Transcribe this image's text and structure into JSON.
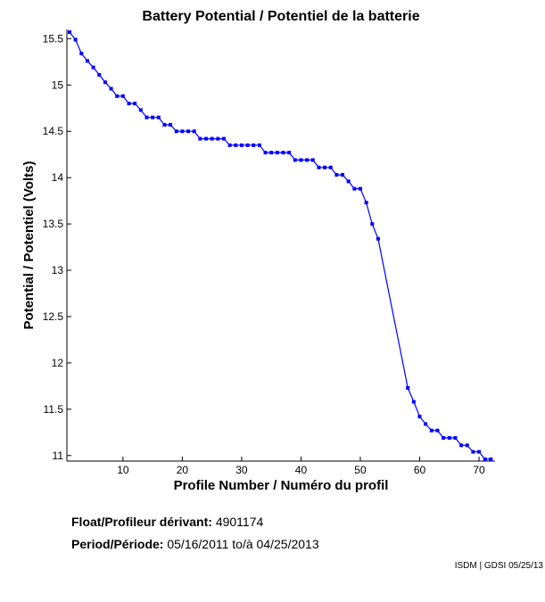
{
  "chart_data": {
    "type": "line",
    "title": "Battery Potential / Potentiel de la batterie",
    "xlabel": "Profile Number / Numéro du profil",
    "ylabel": "Potential / Potentiel (Volts)",
    "xlim": [
      0.55,
      72.7
    ],
    "ylim": [
      10.94,
      15.6
    ],
    "xticks": [
      10,
      20,
      30,
      40,
      50,
      60,
      70
    ],
    "xtick_labels": [
      "10",
      "20",
      "30",
      "40",
      "50",
      "60",
      "70"
    ],
    "yticks": [
      11,
      11.5,
      12,
      12.5,
      13,
      13.5,
      14,
      14.5,
      15,
      15.5
    ],
    "ytick_labels": [
      "11",
      "11.5",
      "12",
      "12.5",
      "13",
      "13.5",
      "14",
      "14.5",
      "15",
      "15.5"
    ],
    "grid": false,
    "color": "#0000ff",
    "x": [
      1,
      2,
      3,
      4,
      5,
      6,
      7,
      8,
      9,
      10,
      11,
      12,
      13,
      14,
      15,
      16,
      17,
      18,
      19,
      20,
      21,
      22,
      23,
      24,
      25,
      26,
      27,
      28,
      29,
      30,
      31,
      32,
      33,
      34,
      35,
      36,
      37,
      38,
      39,
      40,
      41,
      42,
      43,
      44,
      45,
      46,
      47,
      48,
      49,
      50,
      51,
      52,
      53,
      58,
      59,
      60,
      61,
      62,
      63,
      64,
      65,
      66,
      67,
      68,
      69,
      70,
      71,
      72
    ],
    "y": [
      15.57,
      15.49,
      15.34,
      15.26,
      15.19,
      15.11,
      15.03,
      14.96,
      14.88,
      14.88,
      14.8,
      14.8,
      14.73,
      14.65,
      14.65,
      14.65,
      14.57,
      14.57,
      14.5,
      14.5,
      14.5,
      14.5,
      14.42,
      14.42,
      14.42,
      14.42,
      14.42,
      14.35,
      14.35,
      14.35,
      14.35,
      14.35,
      14.35,
      14.27,
      14.27,
      14.27,
      14.27,
      14.27,
      14.19,
      14.19,
      14.19,
      14.19,
      14.11,
      14.11,
      14.11,
      14.03,
      14.03,
      13.96,
      13.88,
      13.88,
      13.73,
      13.5,
      13.34,
      11.73,
      11.58,
      11.42,
      11.34,
      11.27,
      11.27,
      11.19,
      11.19,
      11.19,
      11.11,
      11.11,
      11.04,
      11.04,
      10.96,
      10.96
    ]
  },
  "info": {
    "float_label": "Float/Profileur dérivant:",
    "float_value": "4901174",
    "period_label": "Period/Période:",
    "period_start": "05/16/2011",
    "period_sep": "to/à",
    "period_end": "04/25/2013",
    "credit": "ISDM | GDSI 05/25/13"
  }
}
